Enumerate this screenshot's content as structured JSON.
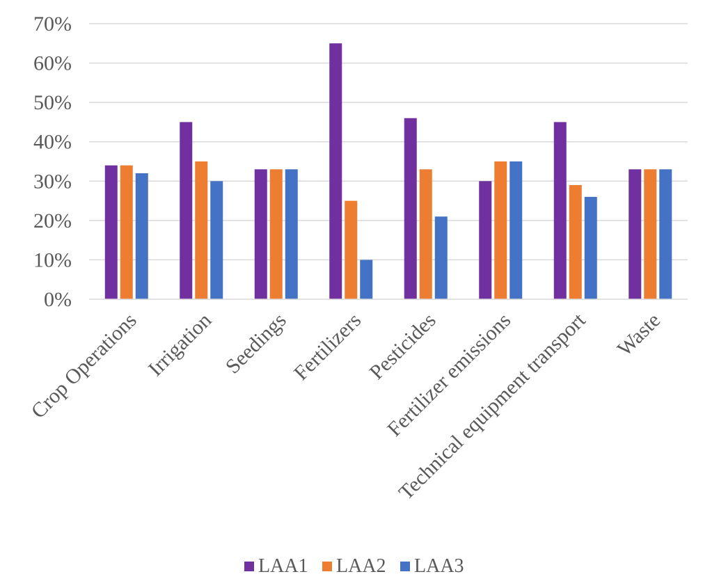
{
  "chart_data": {
    "type": "bar",
    "title": "",
    "xlabel": "",
    "ylabel": "",
    "ylim": [
      0,
      70
    ],
    "yticks": [
      "0%",
      "10%",
      "20%",
      "30%",
      "40%",
      "50%",
      "60%",
      "70%"
    ],
    "grid": true,
    "legend_position": "bottom",
    "categories": [
      "Crop Operations",
      "Irrigation",
      "Seedings",
      "Fertilizers",
      "Pesticides",
      "Fertilizer emissions",
      "Technical equipment transport",
      "Waste"
    ],
    "series": [
      {
        "name": "LAA1",
        "color": "#7030A0",
        "values": [
          34,
          45,
          33,
          65,
          46,
          30,
          45,
          33
        ]
      },
      {
        "name": "LAA2",
        "color": "#ED7D31",
        "values": [
          34,
          35,
          33,
          25,
          33,
          35,
          29,
          33
        ]
      },
      {
        "name": "LAA3",
        "color": "#4472C4",
        "values": [
          32,
          30,
          33,
          10,
          21,
          35,
          26,
          33
        ]
      }
    ]
  }
}
